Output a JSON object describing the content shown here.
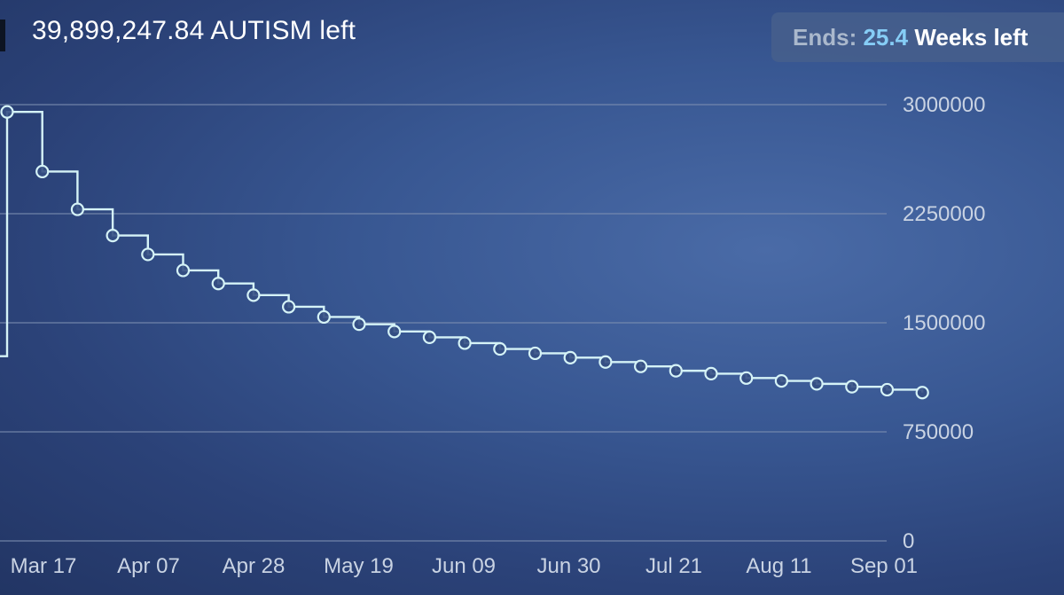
{
  "header": {
    "remaining_text": "39,899,247.84 AUTISM left",
    "ends_label": "Ends:",
    "ends_value": "25.4",
    "ends_suffix": "Weeks left"
  },
  "colors": {
    "line": "#d5f3f7",
    "grid": "#7d8fb1",
    "accent": "#86cdf6"
  },
  "chart_data": {
    "type": "line",
    "step": true,
    "y_axis_position": "right",
    "ylim": [
      0,
      3000000
    ],
    "yticks": [
      0,
      750000,
      1500000,
      2250000,
      3000000
    ],
    "ytick_labels": [
      "0",
      "750000",
      "1500000",
      "2250000",
      "3000000"
    ],
    "xtick_labels": [
      "Mar 17",
      "Apr 07",
      "Apr 28",
      "May 19",
      "Jun 09",
      "Jun 30",
      "Jul 21",
      "Aug 11",
      "Sep 01"
    ],
    "grid": true,
    "initial_value": 1270000,
    "series": [
      {
        "values": [
          2950000,
          2540000,
          2280000,
          2100000,
          1970000,
          1860000,
          1770000,
          1690000,
          1610000,
          1540000,
          1490000,
          1440000,
          1400000,
          1360000,
          1320000,
          1290000,
          1260000,
          1230000,
          1200000,
          1170000,
          1150000,
          1120000,
          1100000,
          1080000,
          1060000,
          1040000,
          1020000
        ]
      }
    ]
  }
}
